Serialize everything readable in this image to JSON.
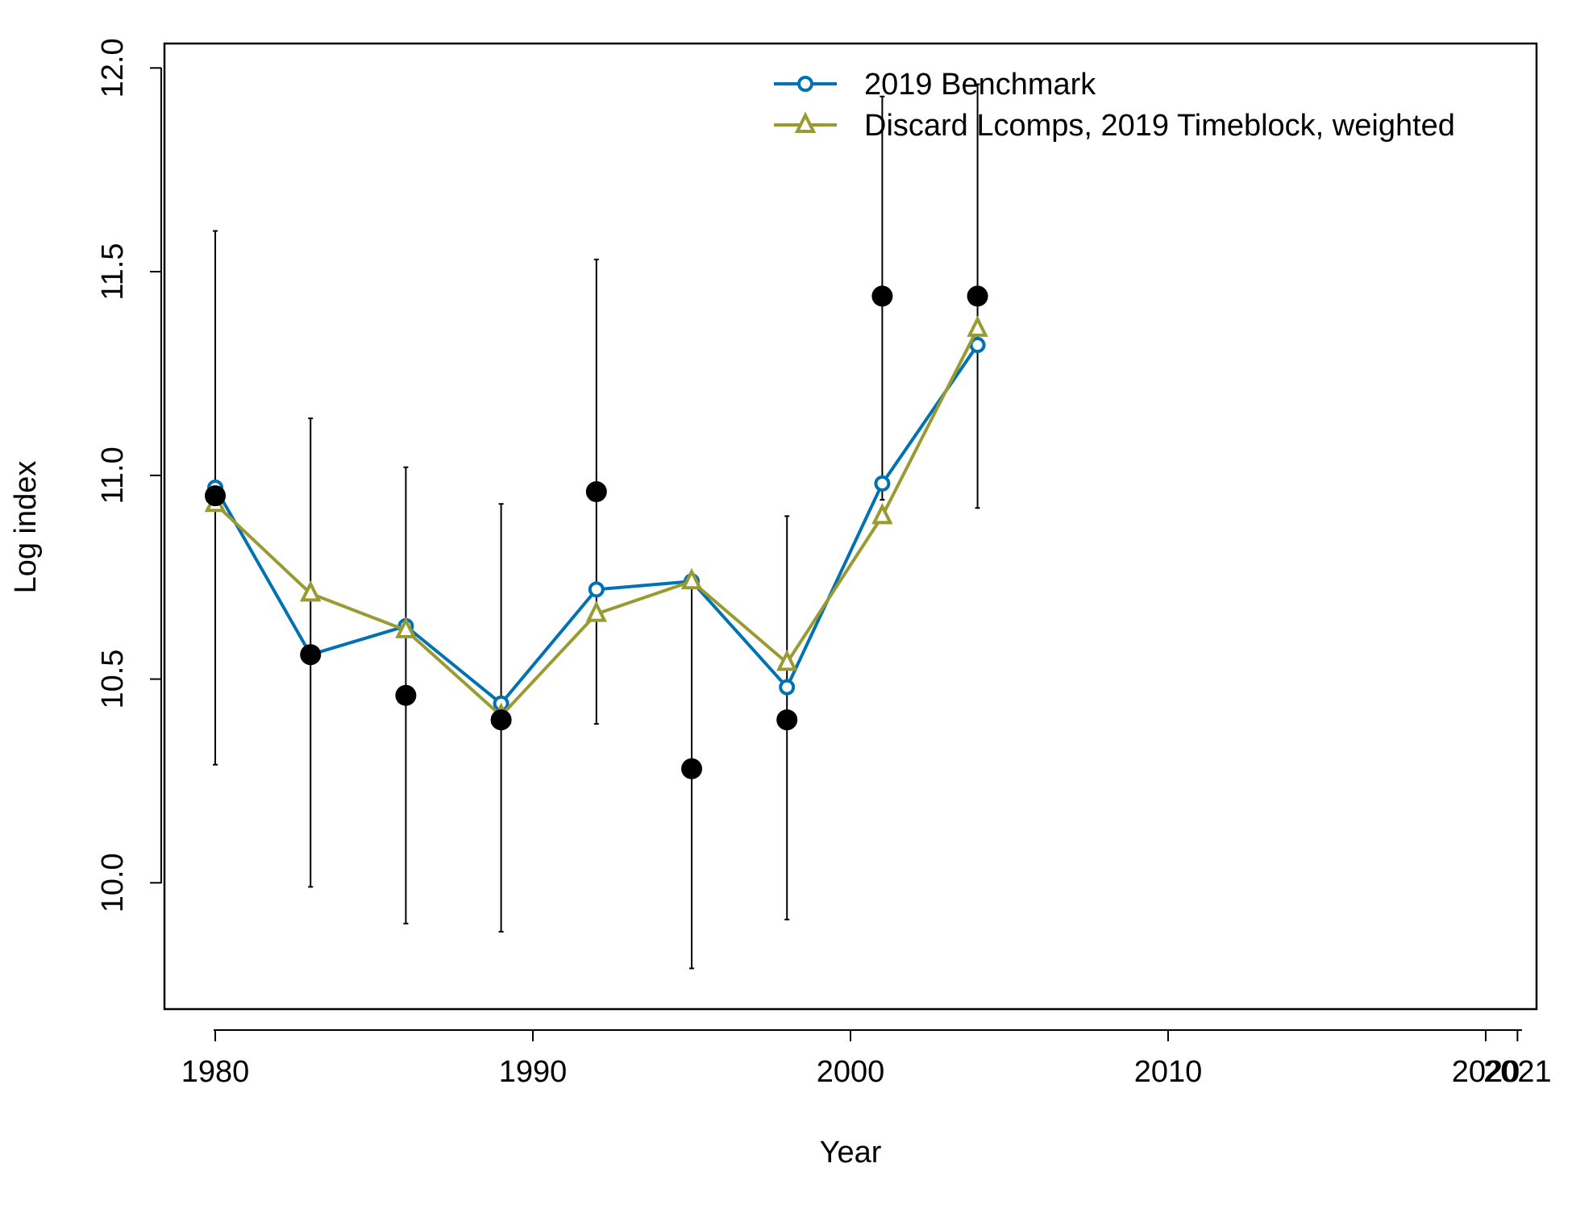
{
  "chart_data": {
    "type": "line",
    "title": "",
    "xlabel": "Year",
    "ylabel": "Log index",
    "xlim": [
      1978.4,
      2021.6
    ],
    "ylim": [
      9.69,
      12.06
    ],
    "x_ticks": [
      1980,
      1990,
      2000,
      2010,
      2020,
      2021
    ],
    "y_ticks": [
      10.0,
      10.5,
      11.0,
      11.5,
      12.0
    ],
    "y_tick_labels": [
      "10.0",
      "10.5",
      "11.0",
      "11.5",
      "12.0"
    ],
    "grid": false,
    "legend_position": "top-right",
    "observed": {
      "x": [
        1980,
        1983,
        1986,
        1989,
        1992,
        1995,
        1998,
        2001,
        2004
      ],
      "y": [
        10.95,
        10.56,
        10.46,
        10.4,
        10.96,
        10.28,
        10.4,
        11.44,
        11.44
      ],
      "lower": [
        10.29,
        9.99,
        9.9,
        9.88,
        10.39,
        9.79,
        9.91,
        10.94,
        10.92
      ],
      "upper": [
        11.6,
        11.14,
        11.02,
        10.93,
        11.53,
        10.76,
        10.9,
        11.93,
        11.96
      ]
    },
    "series": [
      {
        "name": "2019 Benchmark",
        "color": "#0072B2",
        "marker": "circle",
        "x": [
          1980,
          1983,
          1986,
          1989,
          1992,
          1995,
          1998,
          2001,
          2004
        ],
        "y": [
          10.97,
          10.56,
          10.63,
          10.44,
          10.72,
          10.74,
          10.48,
          10.98,
          11.32
        ]
      },
      {
        "name": "Discard Lcomps, 2019 Timeblock, weighted",
        "color": "#9A9A32",
        "marker": "triangle",
        "x": [
          1980,
          1983,
          1986,
          1989,
          1992,
          1995,
          1998,
          2001,
          2004
        ],
        "y": [
          10.93,
          10.71,
          10.62,
          10.41,
          10.66,
          10.74,
          10.54,
          10.9,
          11.36
        ]
      }
    ]
  }
}
